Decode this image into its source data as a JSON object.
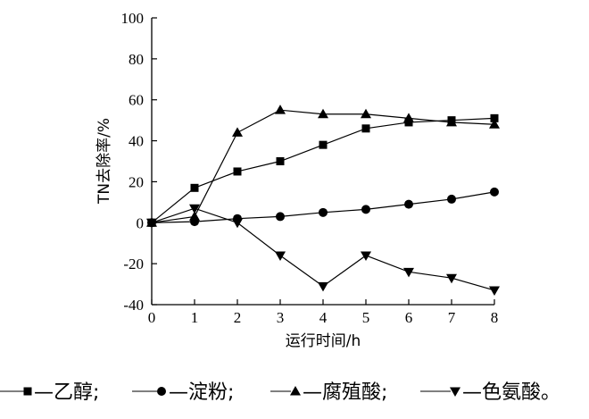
{
  "chart_data": {
    "type": "line",
    "title": "",
    "xlabel": "运行时间/h",
    "ylabel": "TN去除率/%",
    "x": [
      0,
      1,
      2,
      3,
      4,
      5,
      6,
      7,
      8
    ],
    "xlim": [
      0,
      8
    ],
    "ylim": [
      -40,
      100
    ],
    "xticks": [
      0,
      1,
      2,
      3,
      4,
      5,
      6,
      7,
      8
    ],
    "yticks": [
      -40,
      -20,
      0,
      20,
      40,
      60,
      80,
      100
    ],
    "grid": false,
    "legend_position": "bottom",
    "series": [
      {
        "name": "乙醇",
        "marker": "square",
        "values": [
          0,
          17,
          25,
          30,
          38,
          46,
          49,
          50,
          51
        ]
      },
      {
        "name": "淀粉",
        "marker": "circle",
        "values": [
          0,
          0.5,
          2,
          3,
          5,
          6.5,
          9,
          11.5,
          15
        ]
      },
      {
        "name": "腐殖酸",
        "marker": "triangle-up",
        "values": [
          0,
          3,
          44,
          55,
          53,
          53,
          51,
          49,
          48
        ]
      },
      {
        "name": "色氨酸",
        "marker": "triangle-down",
        "values": [
          0,
          7,
          0,
          -16,
          -31,
          -16,
          -24,
          -27,
          -33
        ]
      }
    ],
    "legend_separator": ";",
    "legend_end": "。",
    "color": "#000000"
  }
}
